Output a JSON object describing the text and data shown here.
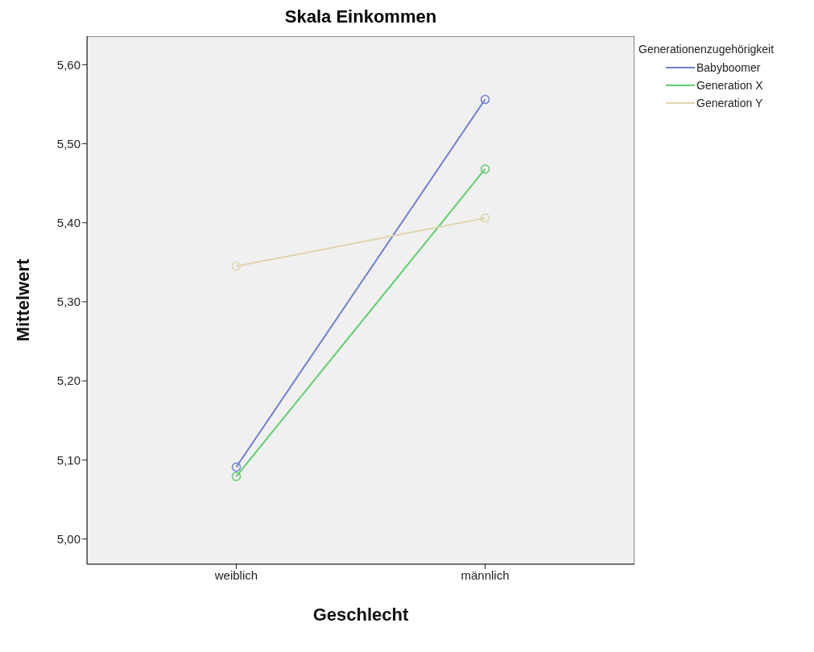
{
  "chart_data": {
    "type": "line",
    "title": "Skala Einkommen",
    "xlabel": "Geschlecht",
    "ylabel": "Mittelwert",
    "legend_title": "Generationenzugehörigkeit",
    "categories": [
      "weiblich",
      "männlich"
    ],
    "series": [
      {
        "name": "Babyboomer",
        "color": "#6f7fcf",
        "values": [
          5.091,
          5.556
        ]
      },
      {
        "name": "Generation X",
        "color": "#5fcf6f",
        "values": [
          5.079,
          5.468
        ]
      },
      {
        "name": "Generation Y",
        "color": "#ddd4ae",
        "values": [
          5.345,
          5.406
        ]
      }
    ],
    "ylim": [
      4.968,
      5.636
    ],
    "yticks": [
      {
        "value": 5.0,
        "label": "5,00"
      },
      {
        "value": 5.1,
        "label": "5,10"
      },
      {
        "value": 5.2,
        "label": "5,20"
      },
      {
        "value": 5.3,
        "label": "5,30"
      },
      {
        "value": 5.4,
        "label": "5,40"
      },
      {
        "value": 5.5,
        "label": "5,50"
      },
      {
        "value": 5.6,
        "label": "5,60"
      }
    ],
    "grid": false,
    "legend": "top right",
    "marker": "circle",
    "line_style": "solid"
  }
}
